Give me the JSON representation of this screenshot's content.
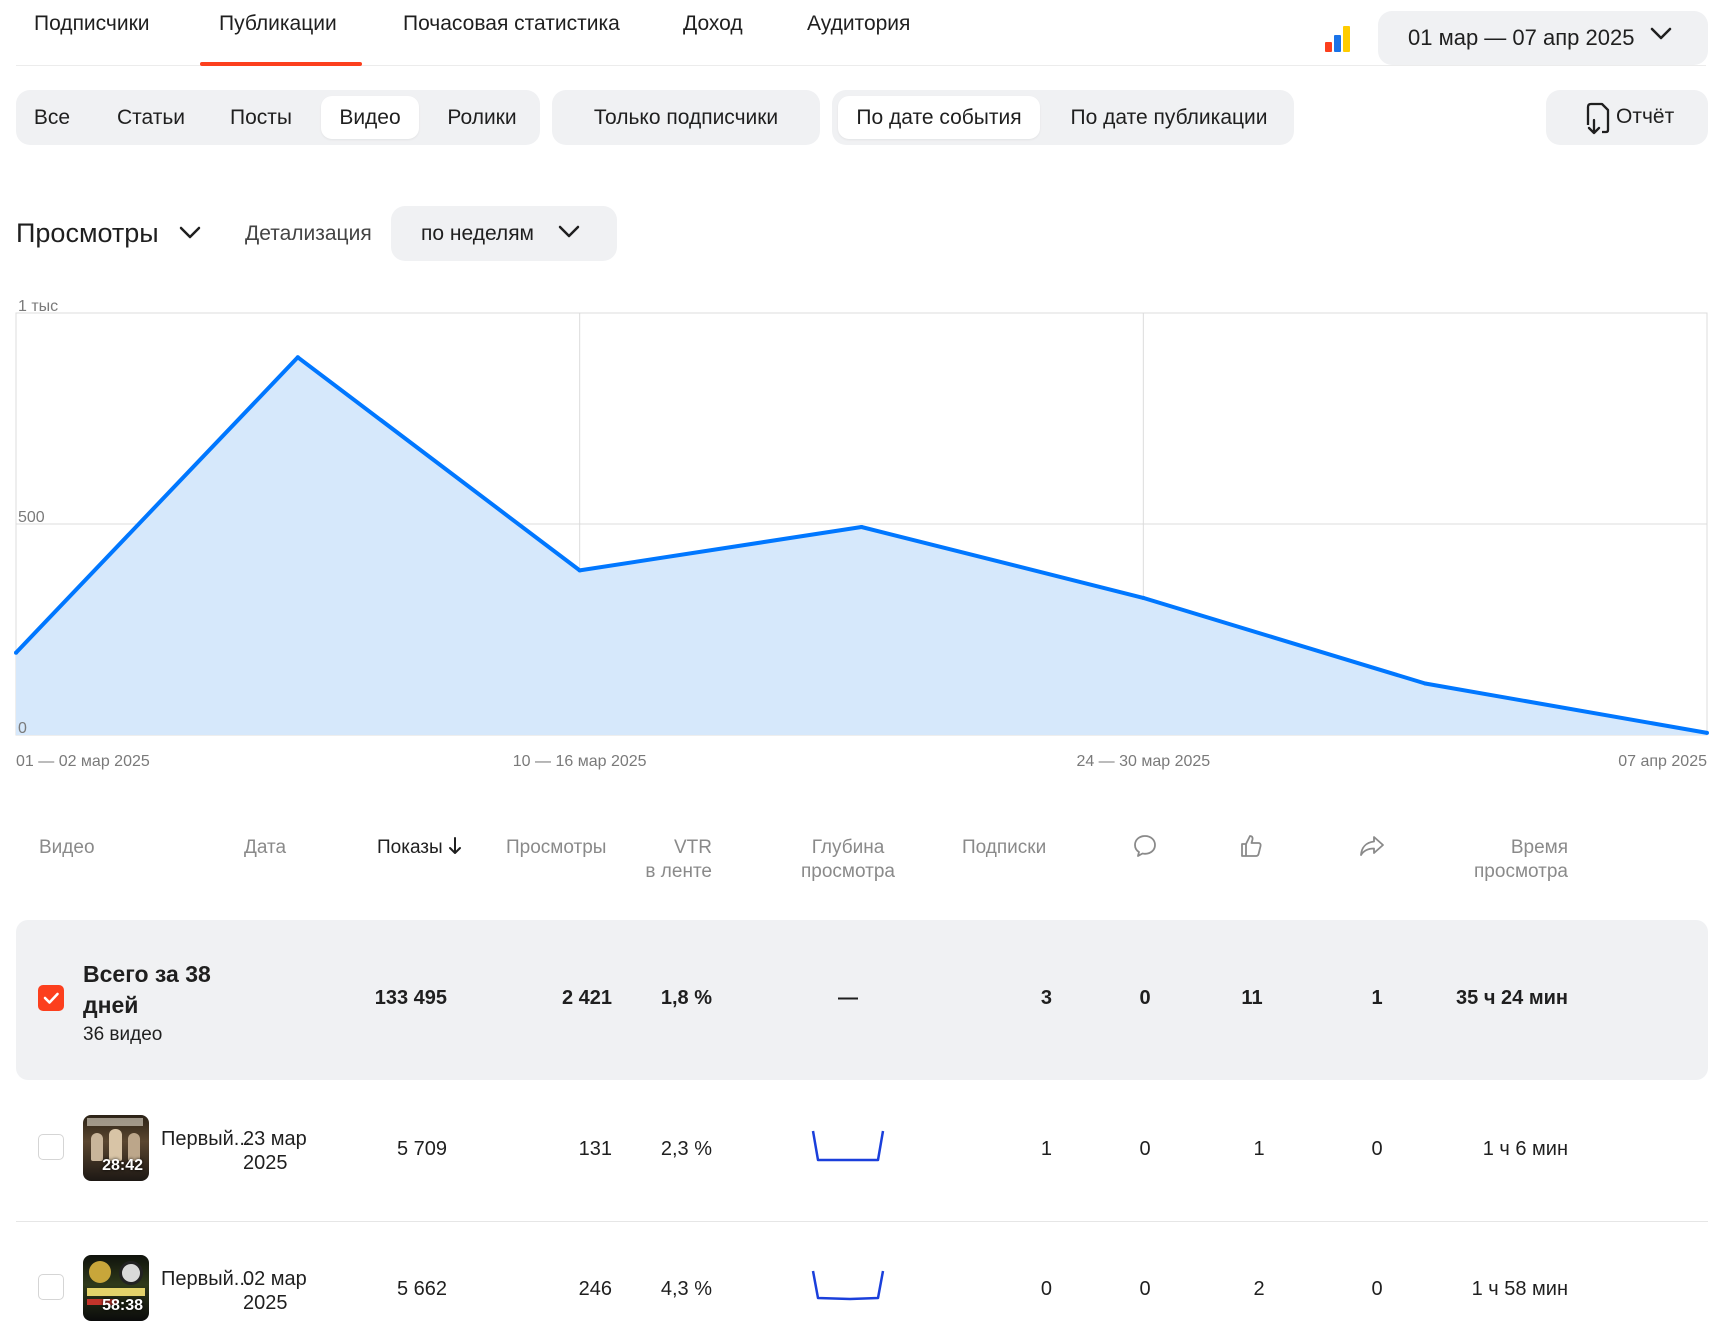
{
  "tabs": [
    {
      "label": "Подписчики"
    },
    {
      "label": "Публикации"
    },
    {
      "label": "Почасовая статистика"
    },
    {
      "label": "Доход"
    },
    {
      "label": "Аудитория"
    }
  ],
  "active_tab": "Публикации",
  "date_range": "01 мар — 07 апр 2025",
  "type_filters": [
    "Все",
    "Статьи",
    "Посты",
    "Видео",
    "Ролики"
  ],
  "selected_type": "Видео",
  "subscribers_only": "Только подписчики",
  "date_mode": [
    "По дате события",
    "По дате публикации"
  ],
  "selected_date_mode": "По дате события",
  "report_button": "Отчёт",
  "metric": "Просмотры",
  "detail_label": "Детализация",
  "detail_value": "по неделям",
  "colors": {
    "accent": "#fc3f1d",
    "line": "#0077ff",
    "fill": "#d6e8fb"
  },
  "chart_data": {
    "type": "area",
    "x_labels": [
      "01 — 02 мар 2025",
      "10 — 16 мар 2025",
      "24 — 30 мар 2025",
      "07 апр 2025"
    ],
    "x": [
      "01 — 02 мар 2025",
      "03 — 09 мар 2025",
      "10 — 16 мар 2025",
      "17 — 23 мар 2025",
      "24 — 30 мар 2025",
      "31 мар — 06 апр 2025",
      "07 апр 2025"
    ],
    "values": [
      195,
      895,
      390,
      493,
      325,
      122,
      5
    ],
    "y_ticks": [
      "0",
      "500",
      "1 тыс"
    ],
    "ylim": [
      0,
      1000
    ]
  },
  "table": {
    "headers": {
      "video": "Видео",
      "date": "Дата",
      "impressions": "Показы",
      "views": "Просмотры",
      "vtr_1": "VTR",
      "vtr_2": "в ленте",
      "depth_1": "Глубина",
      "depth_2": "просмотра",
      "subs": "Подписки",
      "time_1": "Время",
      "time_2": "просмотра"
    },
    "total": {
      "title": "Всего за 38 дней",
      "subtitle": "36 видео",
      "impressions": "133 495",
      "views": "2 421",
      "vtr": "1,8 %",
      "depth": "—",
      "subs": "3",
      "comments": "0",
      "likes": "11",
      "shares": "1",
      "time": "35 ч 24 мин"
    },
    "rows": [
      {
        "title": "Первый...",
        "thumb_label": "28:42",
        "date_1": "23 мар",
        "date_2": "2025",
        "impressions": "5 709",
        "views": "131",
        "vtr": "2,3 %",
        "subs": "1",
        "comments": "0",
        "likes": "1",
        "shares": "0",
        "time": "1 ч 6 мин"
      },
      {
        "title": "Первый...",
        "thumb_label": "58:38",
        "date_1": "02 мар",
        "date_2": "2025",
        "impressions": "5 662",
        "views": "246",
        "vtr": "4,3 %",
        "subs": "0",
        "comments": "0",
        "likes": "2",
        "shares": "0",
        "time": "1 ч 58 мин"
      }
    ]
  },
  "icons": [
    "bar-chart-icon",
    "chevron-down-icon",
    "report-download-icon",
    "sort-arrow-icon",
    "comment-icon",
    "like-icon",
    "share-icon",
    "checkbox-checked-icon"
  ]
}
